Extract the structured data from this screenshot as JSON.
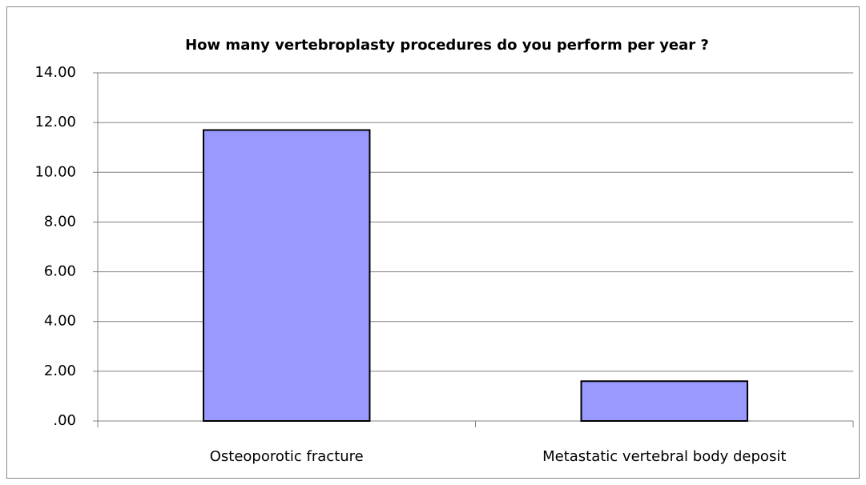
{
  "chart_data": {
    "type": "bar",
    "title": "How many vertebroplasty procedures do you perform per year ?",
    "categories": [
      "Osteoporotic fracture",
      "Metastatic vertebral body deposit"
    ],
    "values": [
      11.7,
      1.6
    ],
    "color": "#9999ff",
    "ylim": [
      0,
      14
    ],
    "yticks": [
      {
        "value": 0,
        "label": ".00"
      },
      {
        "value": 2,
        "label": "2.00"
      },
      {
        "value": 4,
        "label": "4.00"
      },
      {
        "value": 6,
        "label": "6.00"
      },
      {
        "value": 8,
        "label": "8.00"
      },
      {
        "value": 10,
        "label": "10.00"
      },
      {
        "value": 12,
        "label": "12.00"
      },
      {
        "value": 14,
        "label": "14.00"
      }
    ],
    "grid": true
  }
}
